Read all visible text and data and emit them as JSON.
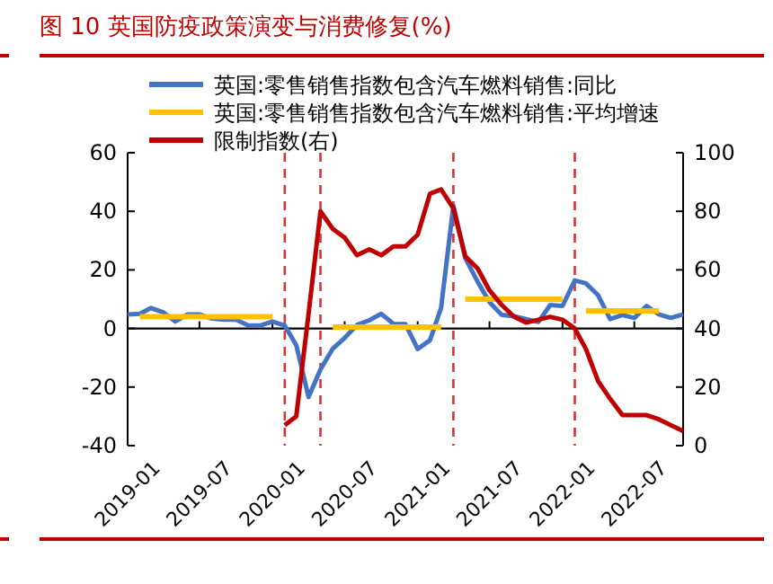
{
  "chart_data": {
    "type": "line",
    "title": "图 10  英国防疫政策演变与消费修复(%)",
    "x": [
      "2019-01",
      "2019-02",
      "2019-03",
      "2019-04",
      "2019-05",
      "2019-06",
      "2019-07",
      "2019-08",
      "2019-09",
      "2019-10",
      "2019-11",
      "2019-12",
      "2020-01",
      "2020-02",
      "2020-03",
      "2020-04",
      "2020-05",
      "2020-06",
      "2020-07",
      "2020-08",
      "2020-09",
      "2020-10",
      "2020-11",
      "2020-12",
      "2021-01",
      "2021-02",
      "2021-03",
      "2021-04",
      "2021-05",
      "2021-06",
      "2021-07",
      "2021-08",
      "2021-09",
      "2021-10",
      "2021-11",
      "2021-12",
      "2022-01",
      "2022-02",
      "2022-03",
      "2022-04",
      "2022-05",
      "2022-06",
      "2022-07",
      "2022-08",
      "2022-09",
      "2022-10",
      "2022-11"
    ],
    "series": [
      {
        "name": "英国:零售销售指数包含汽车燃料销售:同比",
        "color": "#4472c4",
        "values": [
          4.8,
          5,
          7,
          5.5,
          2.4,
          4.8,
          4.8,
          3.4,
          3,
          3,
          1,
          1,
          2.4,
          1,
          -5.7,
          -23.4,
          -14,
          -6.9,
          -3.2,
          1.2,
          2.8,
          5,
          1.6,
          1.5,
          -7,
          -4,
          7,
          42,
          24,
          16,
          9,
          4.6,
          4.2,
          3.2,
          2.2,
          8,
          7.7,
          16.4,
          15.4,
          11.3,
          3.2,
          4.6,
          3.6,
          7.7,
          4.8,
          3.6,
          4.8
        ]
      },
      {
        "name": "英国:零售销售指数包含汽车燃料销售:平均增速",
        "color": "#ffc000",
        "x": [
          "2019-02",
          "2020-01",
          "2020-02",
          "2020-06",
          "2021-03",
          "2021-04",
          "2021-05",
          "2022-01",
          "2022-02",
          "2022-03",
          "2022-09"
        ],
        "values": [
          4,
          4,
          null,
          0.5,
          0.5,
          null,
          10,
          10,
          null,
          6,
          6
        ]
      },
      {
        "name": "限制指数(右)",
        "color": "#c00000",
        "axis": "y2",
        "values": [
          null,
          null,
          null,
          null,
          null,
          null,
          null,
          null,
          null,
          null,
          null,
          null,
          null,
          7,
          10,
          45,
          80,
          74,
          71,
          65,
          67,
          65,
          68,
          68,
          72,
          86,
          87.5,
          81,
          64.6,
          60.5,
          53,
          48,
          44,
          42,
          43,
          44,
          43,
          40,
          33,
          22,
          16,
          10.4,
          10.4,
          10.4,
          9,
          7,
          5
        ]
      }
    ],
    "xlim": [
      "2019-01",
      "2022-11"
    ],
    "xticks": [
      "2019-01",
      "2019-07",
      "2020-01",
      "2020-07",
      "2021-01",
      "2021-07",
      "2022-01",
      "2022-07"
    ],
    "ylim": [
      -40,
      60
    ],
    "yticks": [
      -40,
      -20,
      0,
      20,
      40,
      60
    ],
    "y2lim": [
      0,
      100
    ],
    "y2ticks": [
      0,
      20,
      40,
      60,
      80,
      100
    ],
    "ref_lines": [
      {
        "axis": "y",
        "value": 0,
        "color": "#000000",
        "line_style": "solid"
      },
      {
        "axis": "x",
        "value": "2020-02",
        "color": "#e03030",
        "line_style": "dashed"
      },
      {
        "axis": "x",
        "value": "2020-05",
        "color": "#e03030",
        "line_style": "dashed"
      },
      {
        "axis": "x",
        "value": "2021-04",
        "color": "#e03030",
        "line_style": "dashed"
      },
      {
        "axis": "x",
        "value": "2022-02",
        "color": "#e03030",
        "line_style": "dashed"
      }
    ],
    "legend": "top",
    "grid": false,
    "line_style": "solid",
    "marker": "none"
  }
}
